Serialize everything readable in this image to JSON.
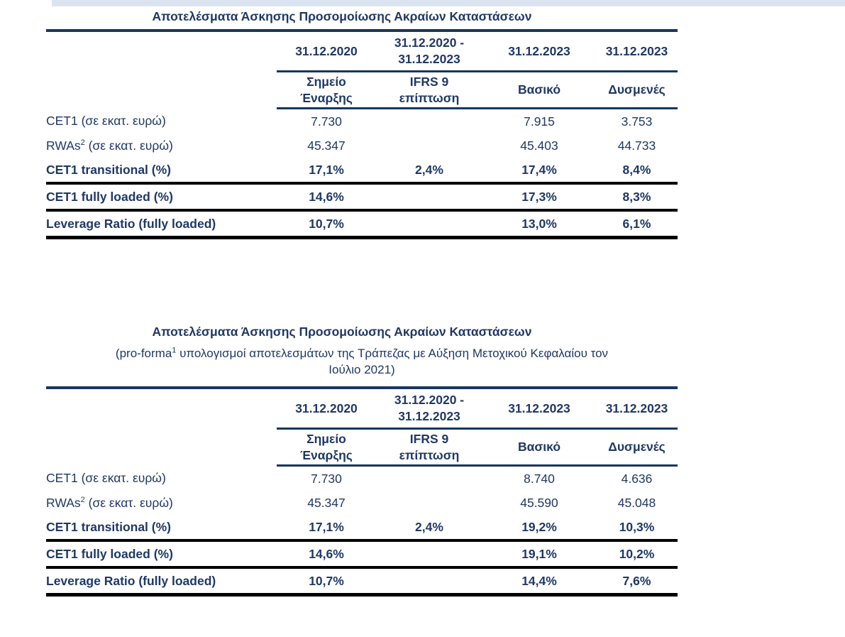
{
  "colors": {
    "text_navy": "#1F3864",
    "rule_navy": "#17365D",
    "rule_black": "#000000",
    "top_strip_blue": "#dbe5f1",
    "background": "#ffffff"
  },
  "tables": [
    {
      "title": "Αποτελέσματα Άσκησης Προσομοίωσης Ακραίων Καταστάσεων",
      "date_headers": [
        "31.12.2020",
        "31.12.2020 -\n31.12.2023",
        "31.12.2023",
        "31.12.2023"
      ],
      "sub_headers": [
        "Σημείο\nΈναρξης",
        "IFRS 9\nεπίπτωση",
        "Βασικό",
        "Δυσμενές"
      ],
      "rows": [
        {
          "label_pre": "CET1 (σε εκατ. ευρώ)",
          "label_sup": "",
          "label_post": "",
          "values": [
            "7.730",
            "",
            "7.915",
            "3.753"
          ]
        },
        {
          "label_pre": "RWAs",
          "label_sup": "2",
          "label_post": " (σε εκατ. ευρώ)",
          "values": [
            "45.347",
            "",
            "45.403",
            "44.733"
          ]
        },
        {
          "label_pre": "CET1 transitional (%)",
          "label_sup": "",
          "label_post": "",
          "values": [
            "17,1%",
            "2,4%",
            "17,4%",
            "8,4%"
          ]
        },
        {
          "label_pre": "CET1 fully loaded (%)",
          "label_sup": "",
          "label_post": "",
          "values": [
            "14,6%",
            "",
            "17,3%",
            "8,3%"
          ]
        },
        {
          "label_pre": "Leverage Ratio (fully loaded)",
          "label_sup": "",
          "label_post": "",
          "values": [
            "10,7%",
            "",
            "13,0%",
            "6,1%"
          ]
        }
      ]
    },
    {
      "title": "Αποτελέσματα Άσκησης Προσομοίωσης Ακραίων Καταστάσεων",
      "subtitle_pre": "(pro-forma",
      "subtitle_sup": "1",
      "subtitle_post": " υπολογισμοί αποτελεσμάτων της Τράπεζας με Αύξηση Μετοχικού Κεφαλαίου τον\nΙούλιο 2021)",
      "date_headers": [
        "31.12.2020",
        "31.12.2020 -\n31.12.2023",
        "31.12.2023",
        "31.12.2023"
      ],
      "sub_headers": [
        "Σημείο\nΈναρξης",
        "IFRS 9\nεπίπτωση",
        "Βασικό",
        "Δυσμενές"
      ],
      "rows": [
        {
          "label_pre": "CET1 (σε εκατ. ευρώ)",
          "label_sup": "",
          "label_post": "",
          "values": [
            "7.730",
            "",
            "8.740",
            "4.636"
          ]
        },
        {
          "label_pre": "RWAs",
          "label_sup": "2",
          "label_post": " (σε εκατ. ευρώ)",
          "values": [
            "45.347",
            "",
            "45.590",
            "45.048"
          ]
        },
        {
          "label_pre": "CET1 transitional (%)",
          "label_sup": "",
          "label_post": "",
          "values": [
            "17,1%",
            "2,4%",
            "19,2%",
            "10,3%"
          ]
        },
        {
          "label_pre": "CET1 fully loaded (%)",
          "label_sup": "",
          "label_post": "",
          "values": [
            "14,6%",
            "",
            "19,1%",
            "10,2%"
          ]
        },
        {
          "label_pre": "Leverage Ratio (fully loaded)",
          "label_sup": "",
          "label_post": "",
          "values": [
            "10,7%",
            "",
            "14,4%",
            "7,6%"
          ]
        }
      ]
    }
  ]
}
